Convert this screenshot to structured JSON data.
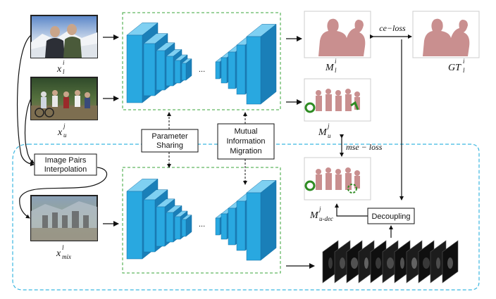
{
  "labels": {
    "x_l": "x",
    "x_l_sup": "l",
    "x_l_sub": "i",
    "x_u": "x",
    "x_u_sup": "j",
    "x_u_sub": "u",
    "x_mix": "x",
    "x_mix_sup": "l",
    "x_mix_sub": "mix",
    "m_l": "M",
    "m_l_sup": "i",
    "m_l_sub": "l",
    "gt_l": "GT",
    "gt_l_sup": "i",
    "gt_l_sub": "l",
    "m_u": "M",
    "m_u_sup": "j",
    "m_u_sub": "u",
    "m_udec": "M",
    "m_udec_sup": "j",
    "m_udec_sub": "u-dec",
    "ce_loss": "ce−loss",
    "mse_loss": "mse − loss",
    "dots_top": "...",
    "dots_bottom": "..."
  },
  "boxes": {
    "parameter_sharing": [
      "Parameter",
      "Sharing"
    ],
    "mutual_info": [
      "Mutual",
      "Information",
      "Migration"
    ],
    "image_pairs": [
      "Image Pairs",
      "Interpolation"
    ],
    "decoupling": "Decoupling"
  },
  "colors": {
    "layer_front": "#29a8e0",
    "layer_top": "#7fd0f2",
    "layer_side": "#1a7fb8",
    "mask_pink": "#c98f8f",
    "mask_green": "#2e8b22",
    "dashed_green": "#3aa63a",
    "dashed_cyan": "#3ab6e0"
  }
}
